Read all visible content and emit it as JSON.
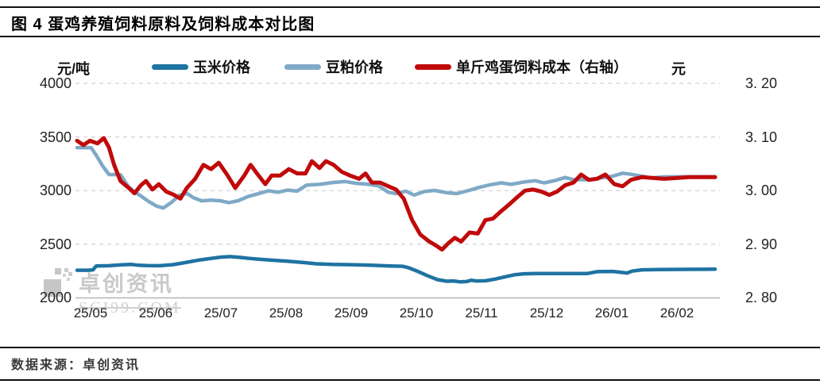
{
  "header": {
    "title": "图 4 蛋鸡养殖饲料原料及饲料成本对比图"
  },
  "footer": {
    "source": "数据来源：卓创资讯"
  },
  "watermark": {
    "name": "卓创资讯",
    "site": "SCI99.COM",
    "color": "#c9c9c9"
  },
  "chart_data": {
    "type": "line",
    "title": "图 4 蛋鸡养殖饲料原料及饲料成本对比图",
    "grid": "horizontal dashed",
    "legend_position": "top",
    "left_axis": {
      "unit": "元/吨",
      "min": 2000,
      "max": 4000,
      "ticks": [
        "4000",
        "3500",
        "3000",
        "2500",
        "2000"
      ]
    },
    "right_axis": {
      "unit": "元",
      "min": 2.8,
      "max": 3.2,
      "ticks": [
        "3. 20",
        "3. 10",
        "3. 00",
        "2. 90",
        "2. 80"
      ]
    },
    "x_ticks": [
      "25/05",
      "25/06",
      "25/07",
      "25/08",
      "25/09",
      "25/10",
      "25/11",
      "25/12",
      "26/01",
      "26/02"
    ],
    "series": [
      {
        "key": "corn-price",
        "name": "玉米价格",
        "axis": "left",
        "color": "#1e73a2",
        "points": [
          [
            0.0,
            2258
          ],
          [
            0.018,
            2258
          ],
          [
            0.025,
            2262
          ],
          [
            0.03,
            2298
          ],
          [
            0.05,
            2300
          ],
          [
            0.07,
            2308
          ],
          [
            0.085,
            2312
          ],
          [
            0.095,
            2305
          ],
          [
            0.11,
            2302
          ],
          [
            0.13,
            2300
          ],
          [
            0.15,
            2310
          ],
          [
            0.17,
            2330
          ],
          [
            0.19,
            2352
          ],
          [
            0.21,
            2368
          ],
          [
            0.225,
            2380
          ],
          [
            0.24,
            2385
          ],
          [
            0.255,
            2378
          ],
          [
            0.27,
            2368
          ],
          [
            0.285,
            2360
          ],
          [
            0.305,
            2352
          ],
          [
            0.33,
            2342
          ],
          [
            0.355,
            2330
          ],
          [
            0.375,
            2318
          ],
          [
            0.4,
            2312
          ],
          [
            0.43,
            2310
          ],
          [
            0.46,
            2305
          ],
          [
            0.49,
            2298
          ],
          [
            0.51,
            2295
          ],
          [
            0.52,
            2280
          ],
          [
            0.535,
            2245
          ],
          [
            0.55,
            2205
          ],
          [
            0.565,
            2170
          ],
          [
            0.58,
            2155
          ],
          [
            0.59,
            2158
          ],
          [
            0.6,
            2150
          ],
          [
            0.61,
            2152
          ],
          [
            0.618,
            2165
          ],
          [
            0.625,
            2158
          ],
          [
            0.64,
            2160
          ],
          [
            0.655,
            2175
          ],
          [
            0.67,
            2195
          ],
          [
            0.685,
            2215
          ],
          [
            0.7,
            2225
          ],
          [
            0.72,
            2228
          ],
          [
            0.75,
            2228
          ],
          [
            0.78,
            2228
          ],
          [
            0.8,
            2228
          ],
          [
            0.815,
            2245
          ],
          [
            0.84,
            2247
          ],
          [
            0.862,
            2232
          ],
          [
            0.87,
            2250
          ],
          [
            0.885,
            2262
          ],
          [
            0.91,
            2264
          ],
          [
            0.95,
            2266
          ],
          [
            1.0,
            2268
          ]
        ]
      },
      {
        "key": "soybean-meal-price",
        "name": "豆粕价格",
        "axis": "left",
        "color": "#7fa9c6",
        "points": [
          [
            0.0,
            3400
          ],
          [
            0.022,
            3400
          ],
          [
            0.03,
            3330
          ],
          [
            0.04,
            3230
          ],
          [
            0.05,
            3150
          ],
          [
            0.068,
            3148
          ],
          [
            0.08,
            3040
          ],
          [
            0.09,
            2990
          ],
          [
            0.1,
            2950
          ],
          [
            0.112,
            2900
          ],
          [
            0.125,
            2855
          ],
          [
            0.135,
            2838
          ],
          [
            0.148,
            2890
          ],
          [
            0.16,
            2955
          ],
          [
            0.172,
            2975
          ],
          [
            0.182,
            2935
          ],
          [
            0.195,
            2905
          ],
          [
            0.21,
            2912
          ],
          [
            0.225,
            2905
          ],
          [
            0.238,
            2888
          ],
          [
            0.252,
            2905
          ],
          [
            0.268,
            2945
          ],
          [
            0.282,
            2968
          ],
          [
            0.3,
            2998
          ],
          [
            0.315,
            2985
          ],
          [
            0.33,
            3005
          ],
          [
            0.345,
            2995
          ],
          [
            0.36,
            3052
          ],
          [
            0.38,
            3058
          ],
          [
            0.4,
            3075
          ],
          [
            0.42,
            3085
          ],
          [
            0.438,
            3068
          ],
          [
            0.455,
            3060
          ],
          [
            0.472,
            3045
          ],
          [
            0.488,
            2985
          ],
          [
            0.5,
            2972
          ],
          [
            0.515,
            2995
          ],
          [
            0.528,
            2958
          ],
          [
            0.545,
            2992
          ],
          [
            0.56,
            3002
          ],
          [
            0.578,
            2982
          ],
          [
            0.595,
            2972
          ],
          [
            0.612,
            2998
          ],
          [
            0.63,
            3030
          ],
          [
            0.648,
            3055
          ],
          [
            0.665,
            3072
          ],
          [
            0.68,
            3058
          ],
          [
            0.7,
            3080
          ],
          [
            0.718,
            3092
          ],
          [
            0.732,
            3072
          ],
          [
            0.748,
            3092
          ],
          [
            0.765,
            3122
          ],
          [
            0.778,
            3102
          ],
          [
            0.8,
            3102
          ],
          [
            0.82,
            3118
          ],
          [
            0.838,
            3132
          ],
          [
            0.855,
            3162
          ],
          [
            0.868,
            3152
          ],
          [
            0.882,
            3138
          ],
          [
            0.9,
            3118
          ],
          [
            0.92,
            3128
          ],
          [
            0.95,
            3130
          ],
          [
            1.0,
            3130
          ]
        ]
      },
      {
        "key": "egg-feed-cost",
        "name": "单斤鸡蛋饲料成本（右轴）",
        "axis": "right",
        "color": "#c00a0a",
        "points": [
          [
            0.0,
            3.093
          ],
          [
            0.01,
            3.085
          ],
          [
            0.02,
            3.093
          ],
          [
            0.032,
            3.088
          ],
          [
            0.042,
            3.098
          ],
          [
            0.05,
            3.08
          ],
          [
            0.058,
            3.048
          ],
          [
            0.068,
            3.018
          ],
          [
            0.08,
            3.006
          ],
          [
            0.09,
            2.995
          ],
          [
            0.1,
            3.01
          ],
          [
            0.108,
            3.018
          ],
          [
            0.118,
            3.002
          ],
          [
            0.128,
            3.012
          ],
          [
            0.14,
            2.998
          ],
          [
            0.152,
            2.992
          ],
          [
            0.162,
            2.985
          ],
          [
            0.172,
            3.005
          ],
          [
            0.185,
            3.022
          ],
          [
            0.198,
            3.048
          ],
          [
            0.21,
            3.04
          ],
          [
            0.222,
            3.052
          ],
          [
            0.235,
            3.03
          ],
          [
            0.248,
            3.005
          ],
          [
            0.262,
            3.028
          ],
          [
            0.272,
            3.048
          ],
          [
            0.282,
            3.032
          ],
          [
            0.295,
            3.012
          ],
          [
            0.305,
            3.028
          ],
          [
            0.318,
            3.028
          ],
          [
            0.332,
            3.04
          ],
          [
            0.345,
            3.032
          ],
          [
            0.358,
            3.032
          ],
          [
            0.368,
            3.055
          ],
          [
            0.38,
            3.042
          ],
          [
            0.39,
            3.055
          ],
          [
            0.402,
            3.048
          ],
          [
            0.415,
            3.035
          ],
          [
            0.428,
            3.028
          ],
          [
            0.442,
            3.022
          ],
          [
            0.452,
            3.032
          ],
          [
            0.462,
            3.015
          ],
          [
            0.475,
            3.015
          ],
          [
            0.488,
            3.008
          ],
          [
            0.5,
            3.002
          ],
          [
            0.512,
            2.985
          ],
          [
            0.525,
            2.945
          ],
          [
            0.538,
            2.918
          ],
          [
            0.552,
            2.905
          ],
          [
            0.562,
            2.898
          ],
          [
            0.572,
            2.89
          ],
          [
            0.582,
            2.902
          ],
          [
            0.592,
            2.912
          ],
          [
            0.602,
            2.905
          ],
          [
            0.615,
            2.922
          ],
          [
            0.628,
            2.92
          ],
          [
            0.64,
            2.945
          ],
          [
            0.652,
            2.948
          ],
          [
            0.665,
            2.962
          ],
          [
            0.678,
            2.975
          ],
          [
            0.69,
            2.988
          ],
          [
            0.702,
            3.0
          ],
          [
            0.715,
            3.002
          ],
          [
            0.728,
            2.998
          ],
          [
            0.74,
            2.992
          ],
          [
            0.752,
            2.998
          ],
          [
            0.765,
            3.01
          ],
          [
            0.778,
            3.015
          ],
          [
            0.79,
            3.03
          ],
          [
            0.802,
            3.02
          ],
          [
            0.815,
            3.022
          ],
          [
            0.828,
            3.03
          ],
          [
            0.842,
            3.012
          ],
          [
            0.855,
            3.008
          ],
          [
            0.868,
            3.02
          ],
          [
            0.885,
            3.025
          ],
          [
            0.92,
            3.022
          ],
          [
            0.96,
            3.025
          ],
          [
            1.0,
            3.025
          ]
        ]
      }
    ]
  }
}
